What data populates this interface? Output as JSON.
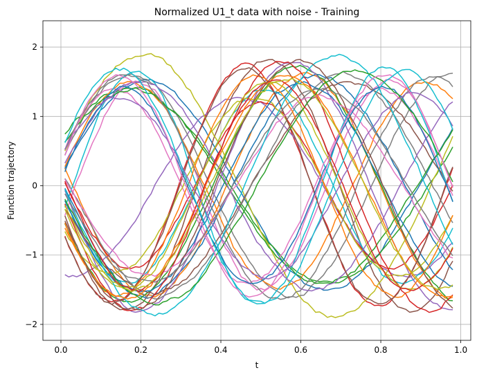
{
  "chart_data": {
    "type": "line",
    "title": "Normalized U1_t data with noise - Training",
    "xlabel": "t",
    "ylabel": "Function trajectory",
    "xlim": [
      -0.045,
      1.025
    ],
    "ylim": [
      -2.23,
      2.38
    ],
    "xticks": [
      0.0,
      0.2,
      0.4,
      0.6,
      0.8,
      1.0
    ],
    "xtick_labels": [
      "0.0",
      "0.2",
      "0.4",
      "0.6",
      "0.8",
      "1.0"
    ],
    "yticks": [
      -2,
      -1,
      0,
      1,
      2
    ],
    "ytick_labels": [
      "−2",
      "−1",
      "0",
      "1",
      "2"
    ],
    "grid": true,
    "legend": "none",
    "noise": 0.035,
    "x_range": [
      0.01,
      0.98
    ],
    "n_points": 100,
    "colors": [
      "#1f77b4",
      "#ff7f0e",
      "#2ca02c",
      "#d62728",
      "#9467bd",
      "#8c564b",
      "#e377c2",
      "#7f7f7f",
      "#bcbd22",
      "#17becf"
    ],
    "series": [
      {
        "amplitude": 1.5,
        "frequency": 1.1,
        "phase": 0.1
      },
      {
        "amplitude": 1.6,
        "frequency": 1.3,
        "phase": 2.9
      },
      {
        "amplitude": 1.4,
        "frequency": 1.0,
        "phase": 0.5
      },
      {
        "amplitude": 1.7,
        "frequency": 1.5,
        "phase": 3.5
      },
      {
        "amplitude": 1.3,
        "frequency": 1.2,
        "phase": 4.5
      },
      {
        "amplitude": 1.8,
        "frequency": 1.4,
        "phase": 3.3
      },
      {
        "amplitude": 1.5,
        "frequency": 1.6,
        "phase": 5.9
      },
      {
        "amplitude": 1.6,
        "frequency": 1.25,
        "phase": 0.2
      },
      {
        "amplitude": 1.9,
        "frequency": 1.05,
        "phase": 0.2
      },
      {
        "amplitude": 1.4,
        "frequency": 1.45,
        "phase": 3.2
      },
      {
        "amplitude": 1.6,
        "frequency": 1.15,
        "phase": 3.2
      },
      {
        "amplitude": 1.5,
        "frequency": 1.35,
        "phase": 0.1
      },
      {
        "amplitude": 1.7,
        "frequency": 1.2,
        "phase": 3.4
      },
      {
        "amplitude": 1.2,
        "frequency": 1.55,
        "phase": 3.0
      },
      {
        "amplitude": 1.8,
        "frequency": 1.3,
        "phase": 3.1
      },
      {
        "amplitude": 1.5,
        "frequency": 1.0,
        "phase": 3.3
      },
      {
        "amplitude": 1.4,
        "frequency": 1.5,
        "phase": 0.3
      },
      {
        "amplitude": 1.6,
        "frequency": 1.1,
        "phase": 3.0
      },
      {
        "amplitude": 1.3,
        "frequency": 1.4,
        "phase": 3.6
      },
      {
        "amplitude": 1.7,
        "frequency": 1.6,
        "phase": 6.0
      },
      {
        "amplitude": 1.5,
        "frequency": 1.25,
        "phase": 3.1
      },
      {
        "amplitude": 1.6,
        "frequency": 1.45,
        "phase": 3.4
      },
      {
        "amplitude": 1.4,
        "frequency": 1.05,
        "phase": 0.4
      },
      {
        "amplitude": 1.8,
        "frequency": 1.35,
        "phase": 3.2
      },
      {
        "amplitude": 1.5,
        "frequency": 1.15,
        "phase": 0.15
      },
      {
        "amplitude": 1.7,
        "frequency": 1.5,
        "phase": 3.5
      },
      {
        "amplitude": 1.3,
        "frequency": 1.2,
        "phase": 3.0
      },
      {
        "amplitude": 1.6,
        "frequency": 1.3,
        "phase": 0.25
      },
      {
        "amplitude": 1.5,
        "frequency": 1.4,
        "phase": 3.3
      },
      {
        "amplitude": 1.9,
        "frequency": 1.1,
        "phase": 3.1
      },
      {
        "amplitude": 1.4,
        "frequency": 1.55,
        "phase": 0.05
      },
      {
        "amplitude": 1.6,
        "frequency": 1.25,
        "phase": 3.45
      },
      {
        "amplitude": 1.7,
        "frequency": 1.0,
        "phase": 3.2
      },
      {
        "amplitude": 1.5,
        "frequency": 1.45,
        "phase": 3.0
      },
      {
        "amplitude": 1.3,
        "frequency": 1.35,
        "phase": 0.35
      },
      {
        "amplitude": 1.8,
        "frequency": 1.2,
        "phase": 3.35
      },
      {
        "amplitude": 1.6,
        "frequency": 1.5,
        "phase": 0.2
      },
      {
        "amplitude": 1.4,
        "frequency": 1.15,
        "phase": 3.15
      },
      {
        "amplitude": 1.5,
        "frequency": 1.3,
        "phase": 3.25
      },
      {
        "amplitude": 1.7,
        "frequency": 1.4,
        "phase": 0.3
      }
    ]
  }
}
